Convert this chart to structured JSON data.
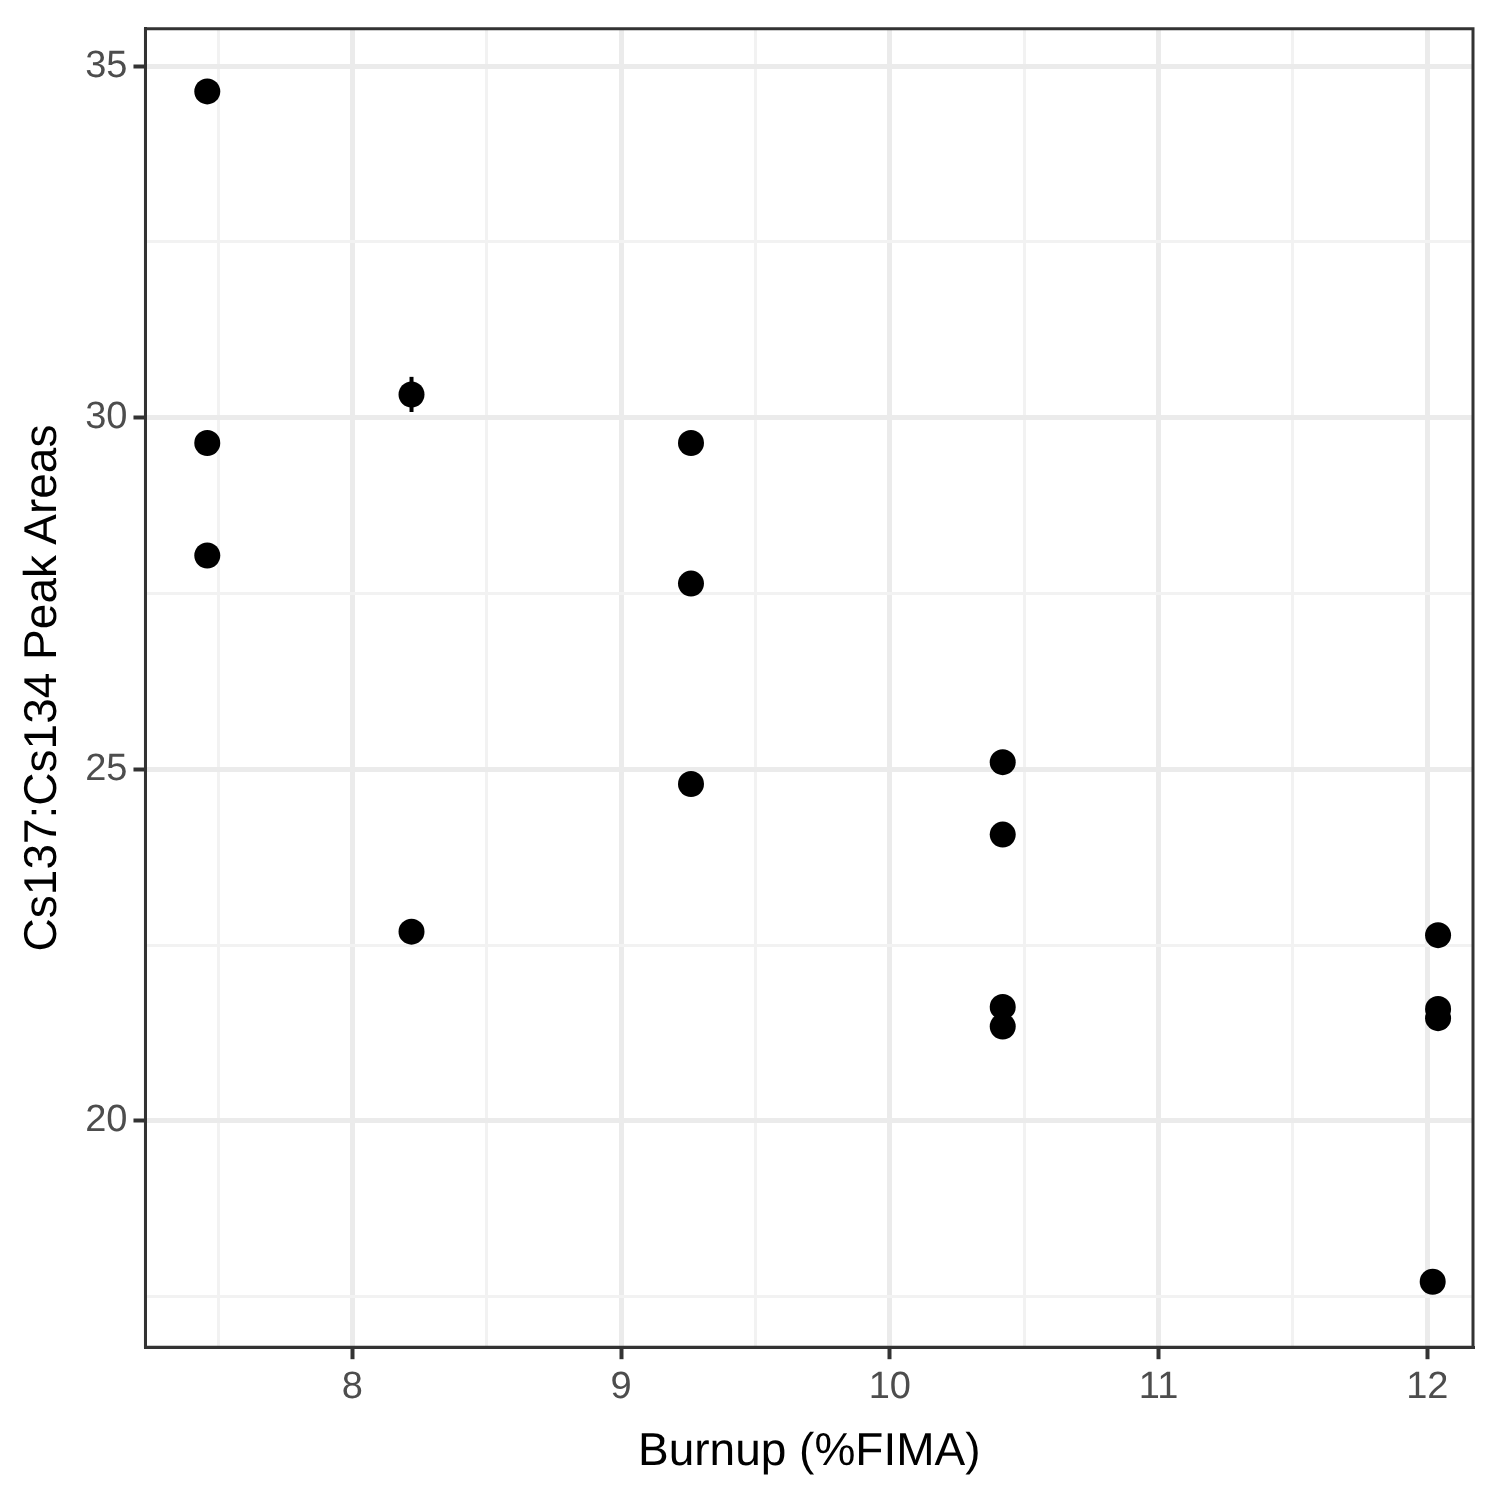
{
  "chart_data": {
    "type": "scatter",
    "xlabel": "Burnup (%FIMA)",
    "ylabel": "Cs137:Cs134 Peak Areas",
    "x": [
      7.46,
      7.46,
      7.46,
      8.22,
      8.22,
      9.26,
      9.26,
      9.26,
      10.42,
      10.42,
      10.42,
      10.42,
      12.04,
      12.04,
      12.04,
      12.02
    ],
    "series": [
      {
        "color": "#000000",
        "values": [
          34.64,
          29.64,
          28.04,
          30.33,
          22.69,
          29.64,
          27.64,
          24.79,
          25.1,
          24.07,
          21.62,
          21.34,
          22.64,
          21.59,
          21.46,
          17.71
        ],
        "errors": [
          null,
          null,
          null,
          0.25,
          null,
          null,
          null,
          null,
          null,
          null,
          null,
          null,
          null,
          null,
          null,
          null
        ]
      }
    ],
    "xlim": [
      7.23,
      12.17
    ],
    "ylim": [
      16.78,
      35.53
    ],
    "xticks": [
      {
        "value": 7.5,
        "label": null
      },
      8,
      {
        "value": 8.5,
        "label": null
      },
      9,
      {
        "value": 9.5,
        "label": null
      },
      10,
      {
        "value": 10.5,
        "label": null
      },
      11,
      {
        "value": 11.5,
        "label": null
      },
      12
    ],
    "yticks": [
      {
        "value": 17.5,
        "label": null
      },
      20,
      {
        "value": 22.5,
        "label": null
      },
      25,
      {
        "value": 27.5,
        "label": null
      },
      30,
      {
        "value": 32.5,
        "label": null
      },
      35
    ],
    "grid": true,
    "legend": false,
    "marker": "circle"
  }
}
